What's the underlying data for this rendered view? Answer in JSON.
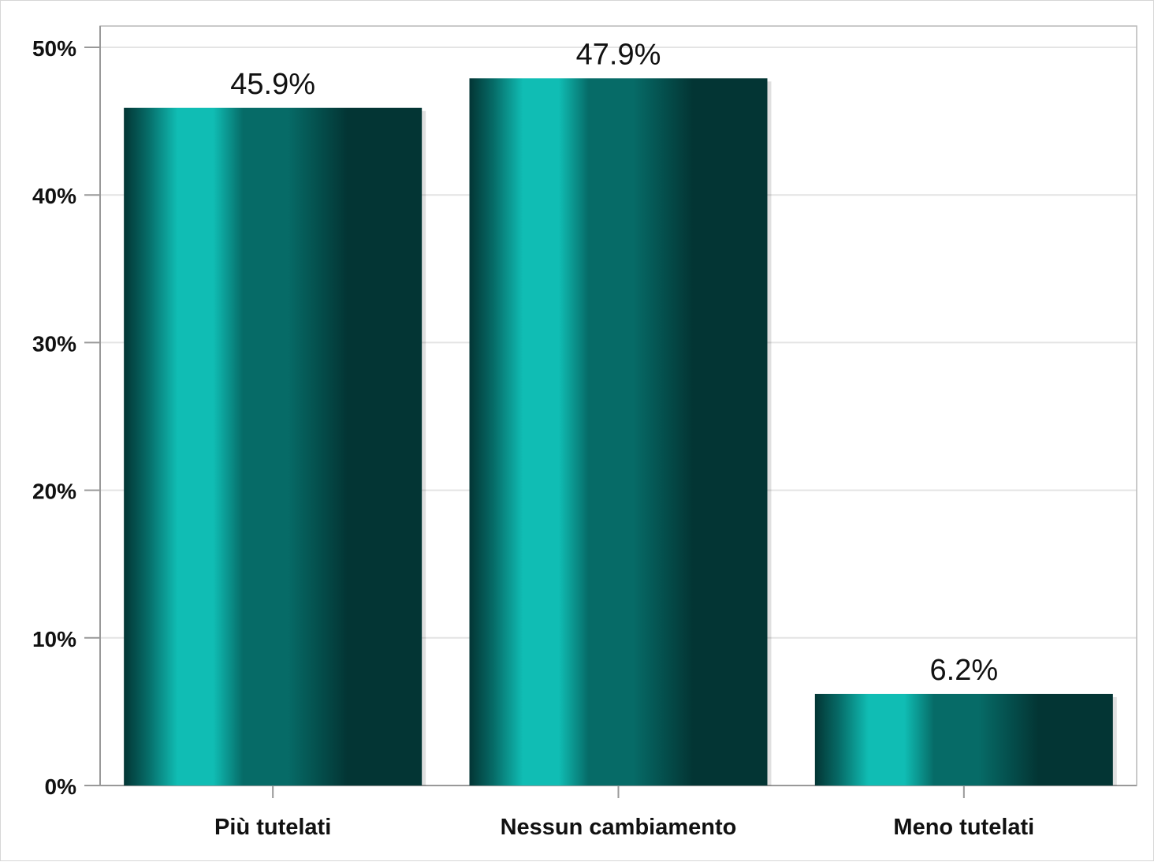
{
  "chart_data": {
    "type": "bar",
    "title": "",
    "xlabel": "",
    "ylabel": "",
    "categories": [
      "Più tutelati",
      "Nessun cambiamento",
      "Meno tutelati"
    ],
    "values": [
      45.9,
      47.9,
      6.2
    ],
    "value_labels": [
      "45.9%",
      "47.9%",
      "6.2%"
    ],
    "ylim": [
      0,
      50
    ],
    "yticks": [
      0,
      10,
      20,
      30,
      40,
      50
    ],
    "ytick_labels": [
      "0%",
      "10%",
      "20%",
      "30%",
      "40%",
      "50%"
    ],
    "grid": true,
    "legend": "none",
    "colors": {
      "bar_dark": "#033534",
      "bar_mid": "#066b67",
      "bar_light": "#10bdb4",
      "grid": "#e4e4e4",
      "axis": "#999999",
      "text": "#111111"
    }
  }
}
